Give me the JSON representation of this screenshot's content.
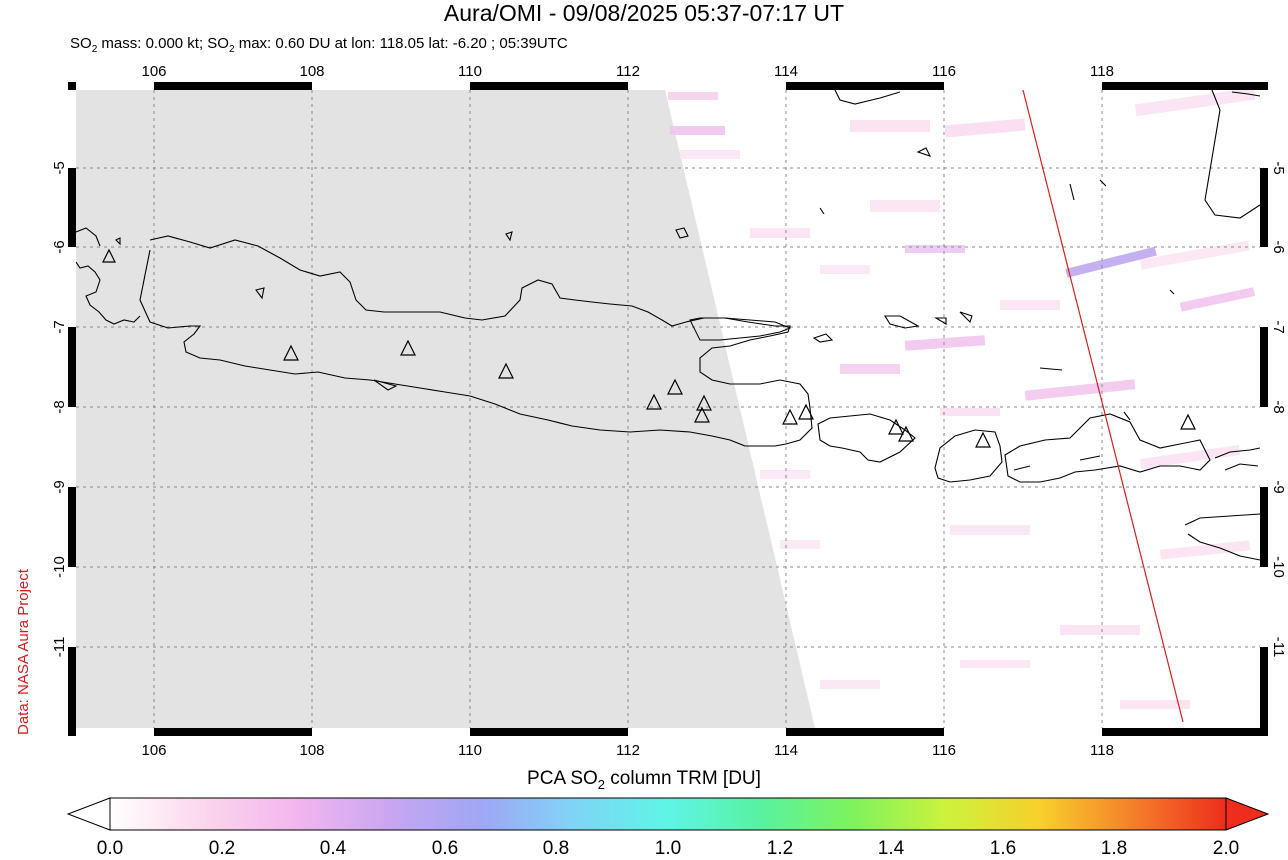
{
  "title": "Aura/OMI - 09/08/2025 05:37-07:17 UT",
  "subtitle": {
    "prefix": "SO",
    "sub1": "2",
    "mid": " mass: 0.000 kt; SO",
    "sub2": "2",
    "rest": " max: 0.60 DU at lon: 118.05 lat: -6.20 ; 05:39UTC"
  },
  "credit": "Data: NASA Aura Project",
  "map": {
    "lon_ticks": [
      "106",
      "108",
      "110",
      "112",
      "114",
      "116",
      "118"
    ],
    "lat_ticks": [
      "-5",
      "-6",
      "-7",
      "-8",
      "-9",
      "-10",
      "-11"
    ],
    "no_data_color": "#e3e3e3",
    "coastline_color": "#000000",
    "track_color": "#d42020",
    "volcano_marker": "triangle"
  },
  "colorbar": {
    "title_prefix": "PCA SO",
    "title_sub": "2",
    "title_suffix": " column TRM [DU]",
    "ticks": [
      "0.0",
      "0.2",
      "0.4",
      "0.6",
      "0.8",
      "1.0",
      "1.2",
      "1.4",
      "1.6",
      "1.8",
      "2.0"
    ],
    "stops": [
      "#ffffff",
      "#fbd6ec",
      "#f3b6ee",
      "#c9a6f1",
      "#9fa6f5",
      "#7fd4f6",
      "#5ef5e6",
      "#58f2a0",
      "#7ff25d",
      "#cdf23c",
      "#f7d02b",
      "#f5802a",
      "#ee2d1d"
    ]
  }
}
